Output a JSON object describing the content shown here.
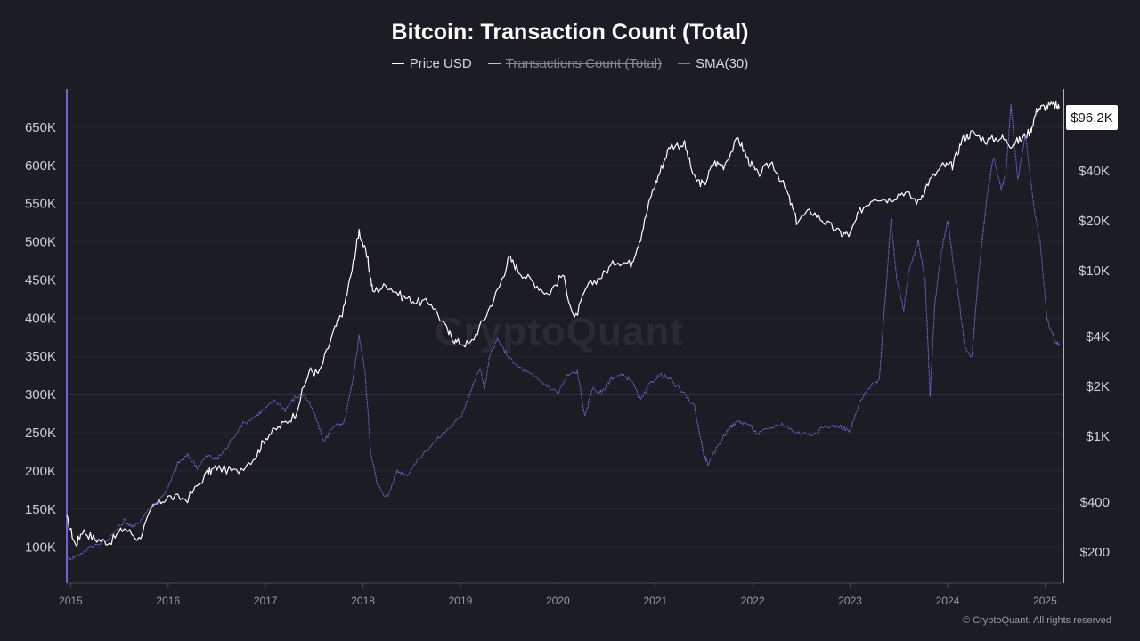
{
  "title": "Bitcoin: Transaction Count (Total)",
  "legend": [
    {
      "label": "Price USD",
      "color": "#ffffff",
      "disabled": false
    },
    {
      "label": "Transactions Count (Total)",
      "color": "#c0c0c8",
      "disabled": true
    },
    {
      "label": "SMA(30)",
      "color": "#7b6ee8",
      "disabled": false
    }
  ],
  "watermark": "CryptoQuant",
  "copyright": "© CryptoQuant. All rights reserved",
  "price_badge": "$96.2K",
  "chart_data": {
    "type": "line",
    "title": "Bitcoin: Transaction Count (Total)",
    "x_ticks": [
      "2015",
      "2016",
      "2017",
      "2018",
      "2019",
      "2020",
      "2021",
      "2022",
      "2023",
      "2024",
      "2025"
    ],
    "xlim": [
      2014.96,
      2025.17
    ],
    "left_axis": {
      "ticks": [
        100000,
        150000,
        200000,
        250000,
        300000,
        350000,
        400000,
        450000,
        500000,
        550000,
        600000,
        650000
      ],
      "tick_labels": [
        "100K",
        "150K",
        "200K",
        "250K",
        "300K",
        "350K",
        "400K",
        "450K",
        "500K",
        "550K",
        "600K",
        "650K"
      ],
      "ylim": [
        53000,
        700000
      ],
      "highlight_line": 300000
    },
    "right_axis": {
      "scale": "log",
      "ticks": [
        200,
        400,
        1000,
        2000,
        4000,
        10000,
        20000,
        40000
      ],
      "tick_labels": [
        "$200",
        "$400",
        "$1K",
        "$2K",
        "$4K",
        "$10K",
        "$20K",
        "$40K"
      ],
      "ylim": [
        130,
        125000
      ]
    },
    "series": [
      {
        "name": "Price USD",
        "axis": "right",
        "color": "#ffffff",
        "points": [
          [
            2014.96,
            320
          ],
          [
            2015.05,
            220
          ],
          [
            2015.12,
            270
          ],
          [
            2015.25,
            240
          ],
          [
            2015.4,
            230
          ],
          [
            2015.55,
            280
          ],
          [
            2015.7,
            240
          ],
          [
            2015.85,
            380
          ],
          [
            2016.0,
            430
          ],
          [
            2016.2,
            420
          ],
          [
            2016.4,
            600
          ],
          [
            2016.5,
            650
          ],
          [
            2016.7,
            610
          ],
          [
            2016.9,
            760
          ],
          [
            2017.0,
            990
          ],
          [
            2017.15,
            1150
          ],
          [
            2017.3,
            1350
          ],
          [
            2017.45,
            2500
          ],
          [
            2017.55,
            2400
          ],
          [
            2017.7,
            4300
          ],
          [
            2017.8,
            5800
          ],
          [
            2017.9,
            11000
          ],
          [
            2017.96,
            17500
          ],
          [
            2018.05,
            11500
          ],
          [
            2018.1,
            7500
          ],
          [
            2018.25,
            8200
          ],
          [
            2018.4,
            7000
          ],
          [
            2018.55,
            6500
          ],
          [
            2018.7,
            6400
          ],
          [
            2018.88,
            4200
          ],
          [
            2018.96,
            3700
          ],
          [
            2019.1,
            3600
          ],
          [
            2019.25,
            5200
          ],
          [
            2019.4,
            8000
          ],
          [
            2019.5,
            12000
          ],
          [
            2019.6,
            10000
          ],
          [
            2019.75,
            8500
          ],
          [
            2019.9,
            7200
          ],
          [
            2020.05,
            9500
          ],
          [
            2020.17,
            5000
          ],
          [
            2020.3,
            8000
          ],
          [
            2020.45,
            9300
          ],
          [
            2020.6,
            11500
          ],
          [
            2020.75,
            11000
          ],
          [
            2020.85,
            16000
          ],
          [
            2020.96,
            29000
          ],
          [
            2021.05,
            40000
          ],
          [
            2021.15,
            57000
          ],
          [
            2021.3,
            58000
          ],
          [
            2021.4,
            36000
          ],
          [
            2021.5,
            33000
          ],
          [
            2021.6,
            45000
          ],
          [
            2021.7,
            43000
          ],
          [
            2021.85,
            63000
          ],
          [
            2021.95,
            47000
          ],
          [
            2022.05,
            38000
          ],
          [
            2022.2,
            45000
          ],
          [
            2022.35,
            30000
          ],
          [
            2022.45,
            20000
          ],
          [
            2022.6,
            23000
          ],
          [
            2022.75,
            19500
          ],
          [
            2022.9,
            16800
          ],
          [
            2023.0,
            16500
          ],
          [
            2023.1,
            23000
          ],
          [
            2023.25,
            28000
          ],
          [
            2023.4,
            27000
          ],
          [
            2023.55,
            30000
          ],
          [
            2023.7,
            26000
          ],
          [
            2023.8,
            34000
          ],
          [
            2023.95,
            43000
          ],
          [
            2024.05,
            43000
          ],
          [
            2024.15,
            62000
          ],
          [
            2024.25,
            68000
          ],
          [
            2024.4,
            61000
          ],
          [
            2024.55,
            64000
          ],
          [
            2024.65,
            58000
          ],
          [
            2024.75,
            62000
          ],
          [
            2024.85,
            70000
          ],
          [
            2024.92,
            95000
          ],
          [
            2025.0,
            98000
          ],
          [
            2025.1,
            100000
          ],
          [
            2025.15,
            96200
          ]
        ]
      },
      {
        "name": "SMA(30)",
        "axis": "left",
        "color": "#7b6ee8",
        "points": [
          [
            2014.96,
            85000
          ],
          [
            2015.05,
            88000
          ],
          [
            2015.2,
            100000
          ],
          [
            2015.4,
            112000
          ],
          [
            2015.55,
            135000
          ],
          [
            2015.65,
            125000
          ],
          [
            2015.8,
            150000
          ],
          [
            2015.9,
            160000
          ],
          [
            2016.0,
            178000
          ],
          [
            2016.1,
            210000
          ],
          [
            2016.2,
            220000
          ],
          [
            2016.3,
            205000
          ],
          [
            2016.4,
            220000
          ],
          [
            2016.5,
            215000
          ],
          [
            2016.6,
            230000
          ],
          [
            2016.75,
            260000
          ],
          [
            2016.9,
            272000
          ],
          [
            2017.0,
            282000
          ],
          [
            2017.1,
            292000
          ],
          [
            2017.2,
            280000
          ],
          [
            2017.3,
            296000
          ],
          [
            2017.4,
            300000
          ],
          [
            2017.5,
            275000
          ],
          [
            2017.6,
            238000
          ],
          [
            2017.7,
            260000
          ],
          [
            2017.8,
            260000
          ],
          [
            2017.9,
            320000
          ],
          [
            2017.96,
            378000
          ],
          [
            2018.02,
            330000
          ],
          [
            2018.08,
            225000
          ],
          [
            2018.15,
            180000
          ],
          [
            2018.25,
            165000
          ],
          [
            2018.35,
            200000
          ],
          [
            2018.45,
            195000
          ],
          [
            2018.6,
            220000
          ],
          [
            2018.75,
            240000
          ],
          [
            2018.9,
            258000
          ],
          [
            2019.0,
            270000
          ],
          [
            2019.1,
            303000
          ],
          [
            2019.2,
            335000
          ],
          [
            2019.25,
            308000
          ],
          [
            2019.3,
            350000
          ],
          [
            2019.38,
            372000
          ],
          [
            2019.45,
            358000
          ],
          [
            2019.55,
            340000
          ],
          [
            2019.7,
            328000
          ],
          [
            2019.85,
            315000
          ],
          [
            2020.0,
            302000
          ],
          [
            2020.1,
            325000
          ],
          [
            2020.2,
            330000
          ],
          [
            2020.28,
            270000
          ],
          [
            2020.35,
            308000
          ],
          [
            2020.45,
            302000
          ],
          [
            2020.55,
            322000
          ],
          [
            2020.65,
            325000
          ],
          [
            2020.75,
            320000
          ],
          [
            2020.85,
            292000
          ],
          [
            2020.95,
            315000
          ],
          [
            2021.05,
            326000
          ],
          [
            2021.15,
            320000
          ],
          [
            2021.3,
            300000
          ],
          [
            2021.4,
            285000
          ],
          [
            2021.5,
            220000
          ],
          [
            2021.55,
            208000
          ],
          [
            2021.65,
            235000
          ],
          [
            2021.75,
            255000
          ],
          [
            2021.85,
            265000
          ],
          [
            2021.95,
            262000
          ],
          [
            2022.05,
            248000
          ],
          [
            2022.15,
            255000
          ],
          [
            2022.3,
            262000
          ],
          [
            2022.45,
            250000
          ],
          [
            2022.6,
            248000
          ],
          [
            2022.75,
            258000
          ],
          [
            2022.9,
            258000
          ],
          [
            2023.0,
            252000
          ],
          [
            2023.1,
            290000
          ],
          [
            2023.2,
            310000
          ],
          [
            2023.3,
            320000
          ],
          [
            2023.38,
            460000
          ],
          [
            2023.42,
            530000
          ],
          [
            2023.48,
            450000
          ],
          [
            2023.55,
            410000
          ],
          [
            2023.6,
            460000
          ],
          [
            2023.7,
            500000
          ],
          [
            2023.77,
            450000
          ],
          [
            2023.82,
            300000
          ],
          [
            2023.87,
            420000
          ],
          [
            2023.93,
            480000
          ],
          [
            2024.0,
            530000
          ],
          [
            2024.05,
            480000
          ],
          [
            2024.12,
            420000
          ],
          [
            2024.18,
            360000
          ],
          [
            2024.25,
            350000
          ],
          [
            2024.32,
            460000
          ],
          [
            2024.4,
            555000
          ],
          [
            2024.47,
            610000
          ],
          [
            2024.55,
            570000
          ],
          [
            2024.6,
            590000
          ],
          [
            2024.65,
            680000
          ],
          [
            2024.72,
            580000
          ],
          [
            2024.8,
            640000
          ],
          [
            2024.88,
            550000
          ],
          [
            2024.95,
            500000
          ],
          [
            2025.02,
            400000
          ],
          [
            2025.1,
            370000
          ],
          [
            2025.15,
            365000
          ]
        ]
      }
    ]
  }
}
